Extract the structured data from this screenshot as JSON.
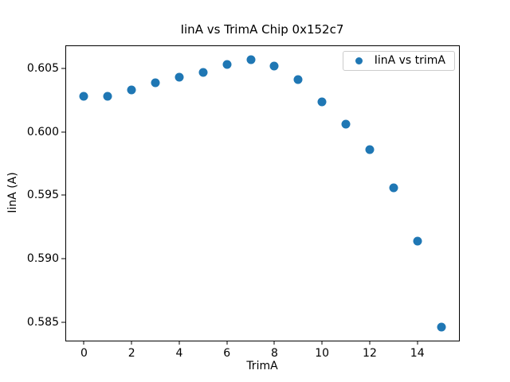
{
  "chart_data": {
    "type": "scatter",
    "title": "IinA vs TrimA Chip 0x152c7",
    "xlabel": "TrimA",
    "ylabel": "IinA (A)",
    "legend": {
      "label": "IinA vs trimA",
      "position": "upper right",
      "marker": "dot"
    },
    "marker_color": "#1f77b4",
    "grid": false,
    "x": [
      0,
      1,
      2,
      3,
      4,
      5,
      6,
      7,
      8,
      9,
      10,
      11,
      12,
      13,
      14,
      15
    ],
    "y": [
      0.6028,
      0.6028,
      0.6033,
      0.6039,
      0.6043,
      0.6047,
      0.6053,
      0.6057,
      0.6052,
      0.6041,
      0.6024,
      0.6006,
      0.5986,
      0.5956,
      0.5914,
      0.5846
    ],
    "xlim": [
      -0.75,
      15.75
    ],
    "ylim": [
      0.58355,
      0.60676
    ],
    "xticks": [
      0,
      2,
      4,
      6,
      8,
      10,
      12,
      14
    ],
    "yticks": [
      0.585,
      0.59,
      0.595,
      0.6,
      0.605
    ],
    "ytick_decimals": 3
  }
}
